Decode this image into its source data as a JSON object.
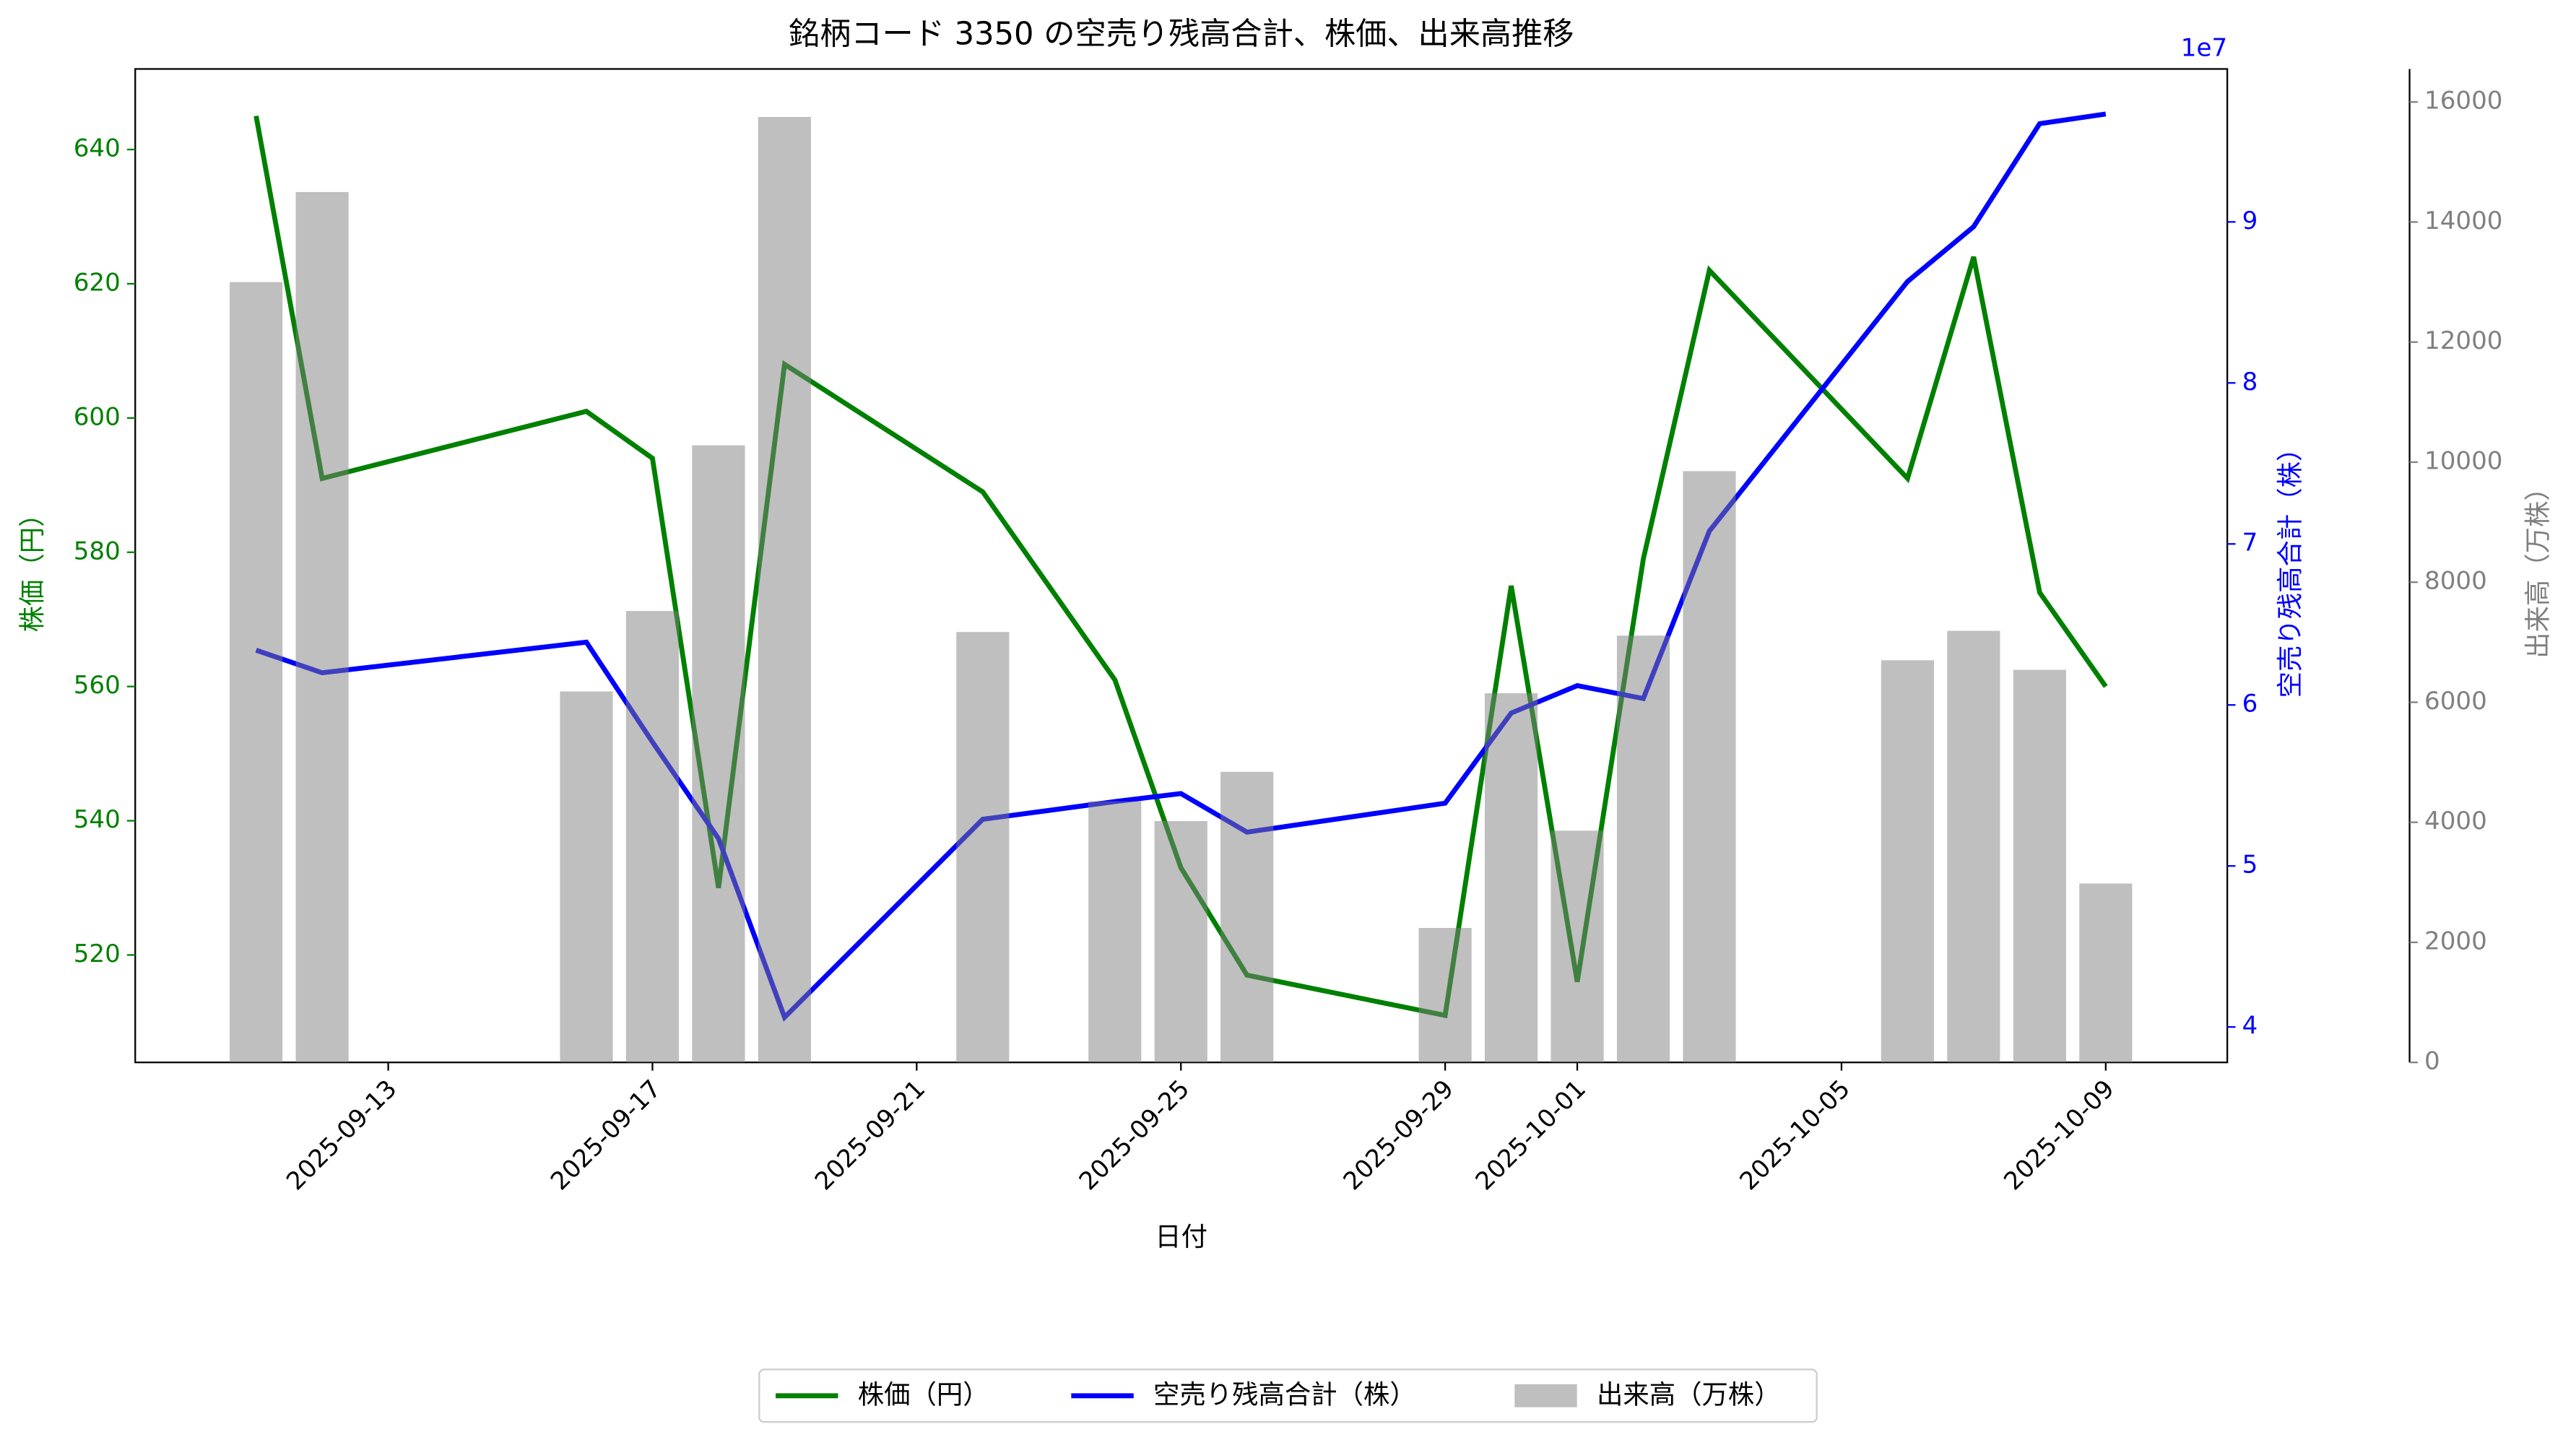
{
  "chart_data": {
    "type": "line",
    "title": "銘柄コード 3350 の空売り残高合計、株価、出来高推移",
    "xlabel": "日付",
    "ylabel": "株価（円）",
    "y2label": "空売り残高合計（株）",
    "y3label": "出来高（万株）",
    "y2_offset_label": "1e7",
    "x": [
      "2025-09-11",
      "2025-09-12",
      "2025-09-16",
      "2025-09-17",
      "2025-09-18",
      "2025-09-19",
      "2025-09-22",
      "2025-09-24",
      "2025-09-25",
      "2025-09-26",
      "2025-09-29",
      "2025-09-30",
      "2025-10-01",
      "2025-10-02",
      "2025-10-03",
      "2025-10-06",
      "2025-10-07",
      "2025-10-08",
      "2025-10-09"
    ],
    "xlim": [
      "2025-09-09T04:05",
      "2025-10-10T20:10"
    ],
    "xticks": [
      "2025-09-13",
      "2025-09-17",
      "2025-09-21",
      "2025-09-25",
      "2025-09-29",
      "2025-10-01",
      "2025-10-05",
      "2025-10-09"
    ],
    "ylim": [
      504,
      652
    ],
    "yticks": [
      520,
      540,
      560,
      580,
      600,
      620,
      640
    ],
    "y2lim": [
      37800000,
      99500000
    ],
    "y2ticks": [
      {
        "value": 40000000,
        "label": "4"
      },
      {
        "value": 50000000,
        "label": "5"
      },
      {
        "value": 60000000,
        "label": "6"
      },
      {
        "value": 70000000,
        "label": "7"
      },
      {
        "value": 80000000,
        "label": "8"
      },
      {
        "value": 90000000,
        "label": "9"
      }
    ],
    "y3lim": [
      0,
      16550
    ],
    "y3ticks": [
      0,
      2000,
      4000,
      6000,
      8000,
      10000,
      12000,
      14000,
      16000
    ],
    "legend": "bottom",
    "series": [
      {
        "name": "株価（円）",
        "color": "#008000",
        "axis": "y",
        "type": "line",
        "values": [
          645,
          591,
          601,
          594,
          530,
          608,
          589,
          561,
          533,
          517,
          511,
          575,
          516,
          579,
          622,
          591,
          624,
          574,
          560
        ]
      },
      {
        "name": "空売り残高合計（株）",
        "color": "#0000ff",
        "axis": "y2",
        "type": "line",
        "values": [
          63400000,
          62000000,
          63900000,
          57700000,
          51700000,
          40600000,
          52900000,
          54000000,
          54500000,
          52100000,
          53900000,
          59500000,
          61200000,
          60400000,
          70800000,
          86300000,
          89700000,
          96100000,
          96700000
        ]
      },
      {
        "name": "出来高（万株）",
        "color": "#808080",
        "axis": "y3",
        "type": "bar",
        "values": [
          13000,
          14500,
          6180,
          7520,
          10280,
          15750,
          7170,
          4350,
          4020,
          4840,
          2240,
          6150,
          3860,
          7110,
          9850,
          6700,
          7190,
          6540,
          2980
        ]
      }
    ]
  }
}
